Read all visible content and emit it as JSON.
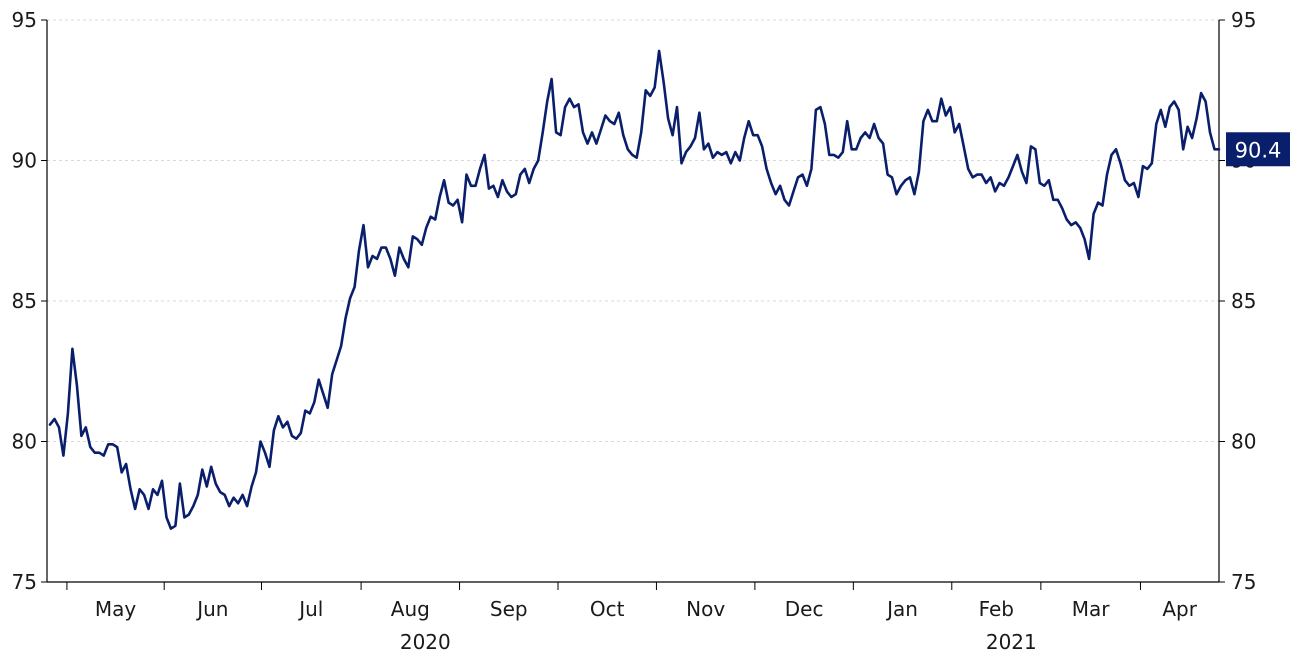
{
  "chart_data": {
    "type": "line",
    "title": "",
    "xlabel": "",
    "ylabel": "",
    "ylim": [
      75,
      95
    ],
    "yticks": [
      75,
      80,
      85,
      90,
      95
    ],
    "y_axes": [
      "left",
      "right"
    ],
    "grid": "horizontal-dashed",
    "legend": "none",
    "months": [
      "Apr",
      "May",
      "Jun",
      "Jul",
      "Aug",
      "Sep",
      "Oct",
      "Nov",
      "Dec",
      "Jan",
      "Feb",
      "Mar",
      "Apr"
    ],
    "month_labels": [
      "May",
      "Jun",
      "Jul",
      "Aug",
      "Sep",
      "Oct",
      "Nov",
      "Dec",
      "Jan",
      "Feb",
      "Mar",
      "Apr"
    ],
    "years": [
      {
        "label": "2020",
        "under_month": "Aug"
      },
      {
        "label": "2021",
        "under_month": "Feb"
      }
    ],
    "last_value_label": "90.4",
    "series": [
      {
        "color": "#0a1f6b",
        "values": [
          80.6,
          80.8,
          80.5,
          79.5,
          81.0,
          83.3,
          82.0,
          80.2,
          80.5,
          79.8,
          79.6,
          79.6,
          79.5,
          79.9,
          79.9,
          79.8,
          78.9,
          79.2,
          78.3,
          77.6,
          78.3,
          78.1,
          77.6,
          78.3,
          78.1,
          78.6,
          77.3,
          76.9,
          77.0,
          78.5,
          77.3,
          77.4,
          77.7,
          78.1,
          79.0,
          78.4,
          79.1,
          78.5,
          78.2,
          78.1,
          77.7,
          78.0,
          77.8,
          78.1,
          77.7,
          78.4,
          78.9,
          80.0,
          79.6,
          79.1,
          80.4,
          80.9,
          80.5,
          80.7,
          80.2,
          80.1,
          80.3,
          81.1,
          81.0,
          81.4,
          82.2,
          81.7,
          81.2,
          82.4,
          82.9,
          83.4,
          84.4,
          85.1,
          85.5,
          86.8,
          87.7,
          86.2,
          86.6,
          86.5,
          86.9,
          86.9,
          86.5,
          85.9,
          86.9,
          86.5,
          86.2,
          87.3,
          87.2,
          87.0,
          87.6,
          88.0,
          87.9,
          88.7,
          89.3,
          88.5,
          88.4,
          88.6,
          87.8,
          89.5,
          89.1,
          89.1,
          89.7,
          90.2,
          89.0,
          89.1,
          88.7,
          89.3,
          88.9,
          88.7,
          88.8,
          89.5,
          89.7,
          89.2,
          89.7,
          90.0,
          91.0,
          92.1,
          92.9,
          91.0,
          90.9,
          91.9,
          92.2,
          91.9,
          92.0,
          91.0,
          90.6,
          91.0,
          90.6,
          91.1,
          91.6,
          91.4,
          91.3,
          91.7,
          90.9,
          90.4,
          90.2,
          90.1,
          91.0,
          92.5,
          92.3,
          92.6,
          93.9,
          92.8,
          91.5,
          90.9,
          91.9,
          89.9,
          90.3,
          90.5,
          90.8,
          91.7,
          90.4,
          90.6,
          90.1,
          90.3,
          90.2,
          90.3,
          89.9,
          90.3,
          90.0,
          90.8,
          91.4,
          90.9,
          90.9,
          90.5,
          89.7,
          89.2,
          88.8,
          89.1,
          88.6,
          88.4,
          88.9,
          89.4,
          89.5,
          89.1,
          89.7,
          91.8,
          91.9,
          91.3,
          90.2,
          90.2,
          90.1,
          90.3,
          91.4,
          90.4,
          90.4,
          90.8,
          91.0,
          90.8,
          91.3,
          90.8,
          90.6,
          89.5,
          89.4,
          88.8,
          89.1,
          89.3,
          89.4,
          88.8,
          89.6,
          91.4,
          91.8,
          91.4,
          91.4,
          92.2,
          91.6,
          91.9,
          91.0,
          91.3,
          90.5,
          89.7,
          89.4,
          89.5,
          89.5,
          89.2,
          89.4,
          88.9,
          89.2,
          89.1,
          89.4,
          89.8,
          90.2,
          89.6,
          89.2,
          90.5,
          90.4,
          89.2,
          89.1,
          89.3,
          88.6,
          88.6,
          88.3,
          87.9,
          87.7,
          87.8,
          87.6,
          87.2,
          86.5,
          88.1,
          88.5,
          88.4,
          89.5,
          90.2,
          90.4,
          89.9,
          89.3,
          89.1,
          89.2,
          88.7,
          89.8,
          89.7,
          89.9,
          91.3,
          91.8,
          91.2,
          91.9,
          92.1,
          91.8,
          90.4,
          91.2,
          90.8,
          91.5,
          92.4,
          92.1,
          91.0,
          90.4,
          90.4
        ]
      }
    ]
  }
}
